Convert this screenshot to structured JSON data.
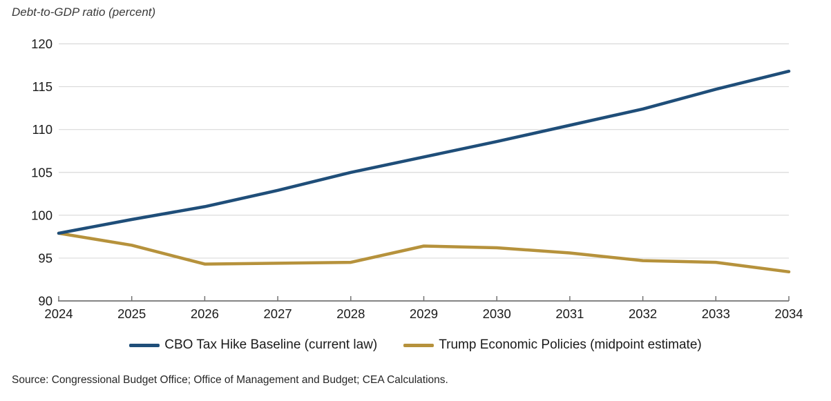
{
  "title": "Debt-to-GDP ratio (percent)",
  "source": "Source: Congressional Budget Office; Office of Management and Budget; CEA Calculations.",
  "colors": {
    "baseline_line": "#1f4e79",
    "policy_line": "#b6923c",
    "gridline": "#d9d9d9",
    "axis": "#737373",
    "tick_label": "#1a1a1a"
  },
  "chart_data": {
    "type": "line",
    "title": "Debt-to-GDP ratio (percent)",
    "xlabel": "",
    "ylabel": "Debt-to-GDP ratio (percent)",
    "x": [
      2024,
      2025,
      2026,
      2027,
      2028,
      2029,
      2030,
      2031,
      2032,
      2033,
      2034
    ],
    "series": [
      {
        "name": "CBO Tax Hike Baseline (current law)",
        "color": "#1f4e79",
        "values": [
          97.9,
          99.5,
          101.0,
          102.9,
          105.0,
          106.8,
          108.6,
          110.5,
          112.4,
          114.7,
          116.8
        ]
      },
      {
        "name": "Trump Economic Policies (midpoint estimate)",
        "color": "#b6923c",
        "values": [
          97.9,
          96.5,
          94.3,
          94.4,
          94.5,
          96.4,
          96.2,
          95.6,
          94.7,
          94.5,
          93.4
        ]
      }
    ],
    "ylim": [
      90,
      120
    ],
    "ytick_step": 5,
    "yticks": [
      90,
      95,
      100,
      105,
      110,
      115,
      120
    ],
    "grid": true,
    "legend_position": "bottom"
  }
}
